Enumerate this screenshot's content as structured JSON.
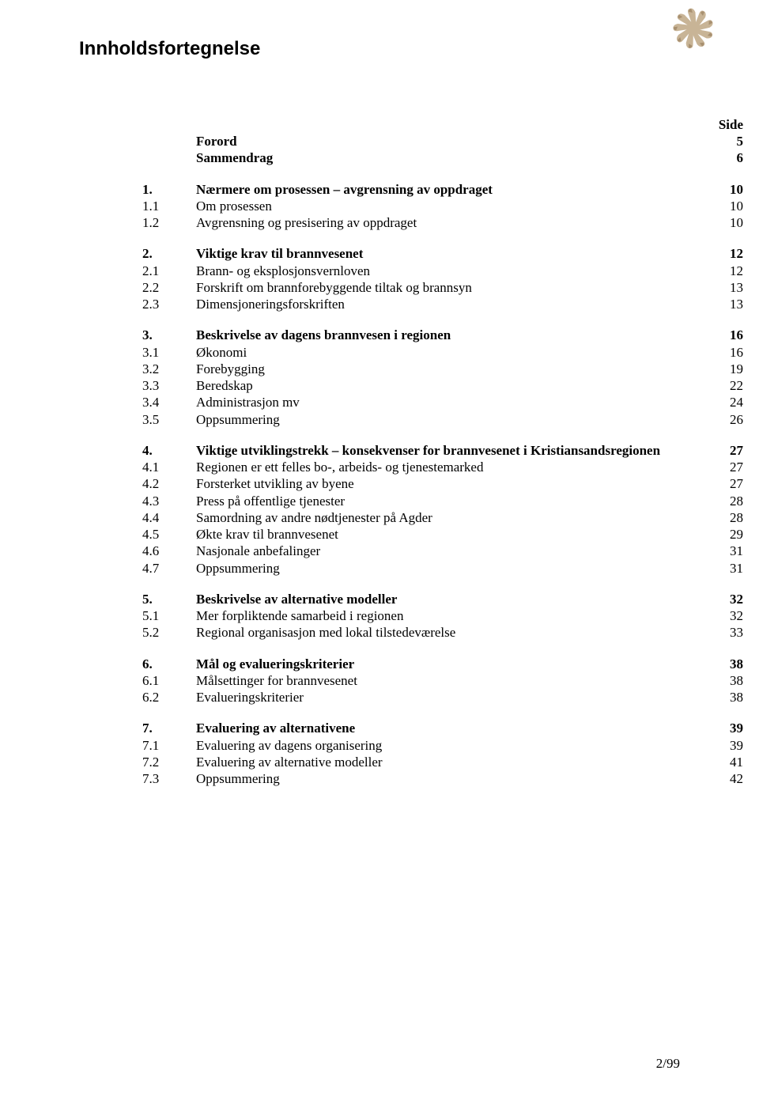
{
  "page_title": "Innholdsfortegnelse",
  "side_label": "Side",
  "footer": "2/99",
  "logo": {
    "colors": [
      "#c8b496",
      "#a89070",
      "#8a7050"
    ]
  },
  "toc": {
    "header_rows": [
      {
        "num": "",
        "title": "Forord",
        "page": "5",
        "bold": true
      },
      {
        "num": "",
        "title": "Sammendrag",
        "page": "6",
        "bold": true
      }
    ],
    "groups": [
      {
        "rows": [
          {
            "num": "1.",
            "title": "Nærmere om prosessen – avgrensning av oppdraget",
            "page": "10",
            "bold": true
          },
          {
            "num": "1.1",
            "title": "Om prosessen",
            "page": "10",
            "bold": false
          },
          {
            "num": "1.2",
            "title": "Avgrensning og presisering av oppdraget",
            "page": "10",
            "bold": false
          }
        ]
      },
      {
        "rows": [
          {
            "num": "2.",
            "title": "Viktige krav til brannvesenet",
            "page": "12",
            "bold": true
          },
          {
            "num": "2.1",
            "title": "Brann- og eksplosjonsvernloven",
            "page": "12",
            "bold": false
          },
          {
            "num": "2.2",
            "title": "Forskrift om brannforebyggende tiltak og brannsyn",
            "page": "13",
            "bold": false
          },
          {
            "num": "2.3",
            "title": "Dimensjoneringsforskriften",
            "page": "13",
            "bold": false
          }
        ]
      },
      {
        "rows": [
          {
            "num": "3.",
            "title": "Beskrivelse av dagens brannvesen i regionen",
            "page": "16",
            "bold": true
          },
          {
            "num": "3.1",
            "title": "Økonomi",
            "page": "16",
            "bold": false
          },
          {
            "num": "3.2",
            "title": "Forebygging",
            "page": "19",
            "bold": false
          },
          {
            "num": "3.3",
            "title": "Beredskap",
            "page": "22",
            "bold": false
          },
          {
            "num": "3.4",
            "title": "Administrasjon mv",
            "page": "24",
            "bold": false
          },
          {
            "num": "3.5",
            "title": "Oppsummering",
            "page": "26",
            "bold": false
          }
        ]
      },
      {
        "rows": [
          {
            "num": "4.",
            "title": "Viktige utviklingstrekk – konsekvenser for brannvesenet i Kristiansandsregionen",
            "page": "27",
            "bold": true
          },
          {
            "num": "4.1",
            "title": "Regionen er ett felles bo-, arbeids- og tjenestemarked",
            "page": "27",
            "bold": false
          },
          {
            "num": "4.2",
            "title": "Forsterket utvikling av byene",
            "page": "27",
            "bold": false
          },
          {
            "num": "4.3",
            "title": "Press på offentlige tjenester",
            "page": "28",
            "bold": false
          },
          {
            "num": "4.4",
            "title": "Samordning av andre nødtjenester på Agder",
            "page": "28",
            "bold": false
          },
          {
            "num": "4.5",
            "title": "Økte krav til brannvesenet",
            "page": "29",
            "bold": false
          },
          {
            "num": "4.6",
            "title": "Nasjonale anbefalinger",
            "page": "31",
            "bold": false
          },
          {
            "num": "4.7",
            "title": "Oppsummering",
            "page": "31",
            "bold": false
          }
        ]
      },
      {
        "rows": [
          {
            "num": "5.",
            "title": "Beskrivelse av alternative modeller",
            "page": "32",
            "bold": true
          },
          {
            "num": "5.1",
            "title": "Mer forpliktende samarbeid i regionen",
            "page": "32",
            "bold": false
          },
          {
            "num": "5.2",
            "title": "Regional organisasjon med lokal tilstedeværelse",
            "page": "33",
            "bold": false
          }
        ]
      },
      {
        "rows": [
          {
            "num": "6.",
            "title": "Mål og evalueringskriterier",
            "page": "38",
            "bold": true
          },
          {
            "num": "6.1",
            "title": "Målsettinger for brannvesenet",
            "page": "38",
            "bold": false
          },
          {
            "num": "6.2",
            "title": "Evalueringskriterier",
            "page": "38",
            "bold": false
          }
        ]
      },
      {
        "rows": [
          {
            "num": "7.",
            "title": "Evaluering av alternativene",
            "page": "39",
            "bold": true
          },
          {
            "num": "7.1",
            "title": "Evaluering av dagens organisering",
            "page": "39",
            "bold": false
          },
          {
            "num": "7.2",
            "title": "Evaluering av alternative modeller",
            "page": "41",
            "bold": false
          },
          {
            "num": "7.3",
            "title": "Oppsummering",
            "page": "42",
            "bold": false
          }
        ]
      }
    ]
  }
}
